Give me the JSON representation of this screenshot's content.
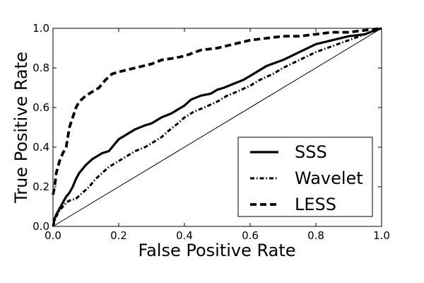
{
  "chart_data": {
    "type": "line",
    "title": "",
    "xlabel": "False Positive Rate",
    "ylabel": "True Positive Rate",
    "xlim": [
      0.0,
      1.0
    ],
    "ylim": [
      0.0,
      1.0
    ],
    "x_ticks": [
      "0.0",
      "0.2",
      "0.4",
      "0.6",
      "0.8",
      "1.0"
    ],
    "y_ticks": [
      "0.0",
      "0.2",
      "0.4",
      "0.6",
      "0.8",
      "1.0"
    ],
    "grid": false,
    "legend_position": "lower-right",
    "reference_line": {
      "x": [
        0.0,
        1.0
      ],
      "y": [
        0.0,
        1.0
      ]
    },
    "series": [
      {
        "name": "SSS",
        "style": "solid",
        "x": [
          0.0,
          0.005,
          0.01,
          0.02,
          0.03,
          0.04,
          0.05,
          0.06,
          0.07,
          0.08,
          0.09,
          0.1,
          0.12,
          0.14,
          0.15,
          0.17,
          0.18,
          0.19,
          0.2,
          0.22,
          0.25,
          0.28,
          0.3,
          0.33,
          0.36,
          0.38,
          0.4,
          0.42,
          0.45,
          0.48,
          0.5,
          0.52,
          0.55,
          0.58,
          0.6,
          0.62,
          0.65,
          0.7,
          0.75,
          0.8,
          0.85,
          0.9,
          0.95,
          0.98,
          1.0
        ],
        "y": [
          0.0,
          0.04,
          0.06,
          0.09,
          0.12,
          0.15,
          0.17,
          0.2,
          0.24,
          0.27,
          0.29,
          0.31,
          0.34,
          0.36,
          0.37,
          0.38,
          0.4,
          0.42,
          0.44,
          0.46,
          0.49,
          0.51,
          0.52,
          0.55,
          0.57,
          0.59,
          0.61,
          0.64,
          0.66,
          0.67,
          0.69,
          0.7,
          0.72,
          0.74,
          0.76,
          0.78,
          0.81,
          0.84,
          0.88,
          0.92,
          0.94,
          0.96,
          0.97,
          0.99,
          1.0
        ]
      },
      {
        "name": "Wavelet",
        "style": "dashdot",
        "x": [
          0.0,
          0.01,
          0.02,
          0.03,
          0.04,
          0.05,
          0.07,
          0.09,
          0.11,
          0.13,
          0.15,
          0.17,
          0.2,
          0.22,
          0.25,
          0.28,
          0.3,
          0.33,
          0.35,
          0.38,
          0.4,
          0.43,
          0.46,
          0.5,
          0.53,
          0.56,
          0.6,
          0.63,
          0.67,
          0.7,
          0.75,
          0.8,
          0.85,
          0.9,
          0.95,
          1.0
        ],
        "y": [
          0.0,
          0.05,
          0.08,
          0.1,
          0.12,
          0.13,
          0.14,
          0.17,
          0.2,
          0.24,
          0.27,
          0.3,
          0.33,
          0.35,
          0.38,
          0.4,
          0.42,
          0.45,
          0.48,
          0.52,
          0.55,
          0.58,
          0.6,
          0.63,
          0.66,
          0.68,
          0.71,
          0.74,
          0.77,
          0.8,
          0.84,
          0.88,
          0.91,
          0.94,
          0.97,
          1.0
        ]
      },
      {
        "name": "LESS",
        "style": "dashed",
        "x": [
          0.0,
          0.005,
          0.01,
          0.02,
          0.03,
          0.04,
          0.05,
          0.06,
          0.07,
          0.08,
          0.1,
          0.12,
          0.14,
          0.16,
          0.18,
          0.2,
          0.25,
          0.3,
          0.33,
          0.37,
          0.4,
          0.45,
          0.5,
          0.55,
          0.6,
          0.65,
          0.7,
          0.75,
          0.8,
          0.85,
          0.9,
          0.95,
          1.0
        ],
        "y": [
          0.16,
          0.2,
          0.27,
          0.33,
          0.37,
          0.4,
          0.5,
          0.55,
          0.6,
          0.63,
          0.66,
          0.68,
          0.7,
          0.74,
          0.77,
          0.78,
          0.8,
          0.82,
          0.84,
          0.85,
          0.86,
          0.89,
          0.9,
          0.92,
          0.94,
          0.95,
          0.96,
          0.96,
          0.97,
          0.98,
          0.98,
          0.99,
          1.0
        ]
      }
    ]
  }
}
